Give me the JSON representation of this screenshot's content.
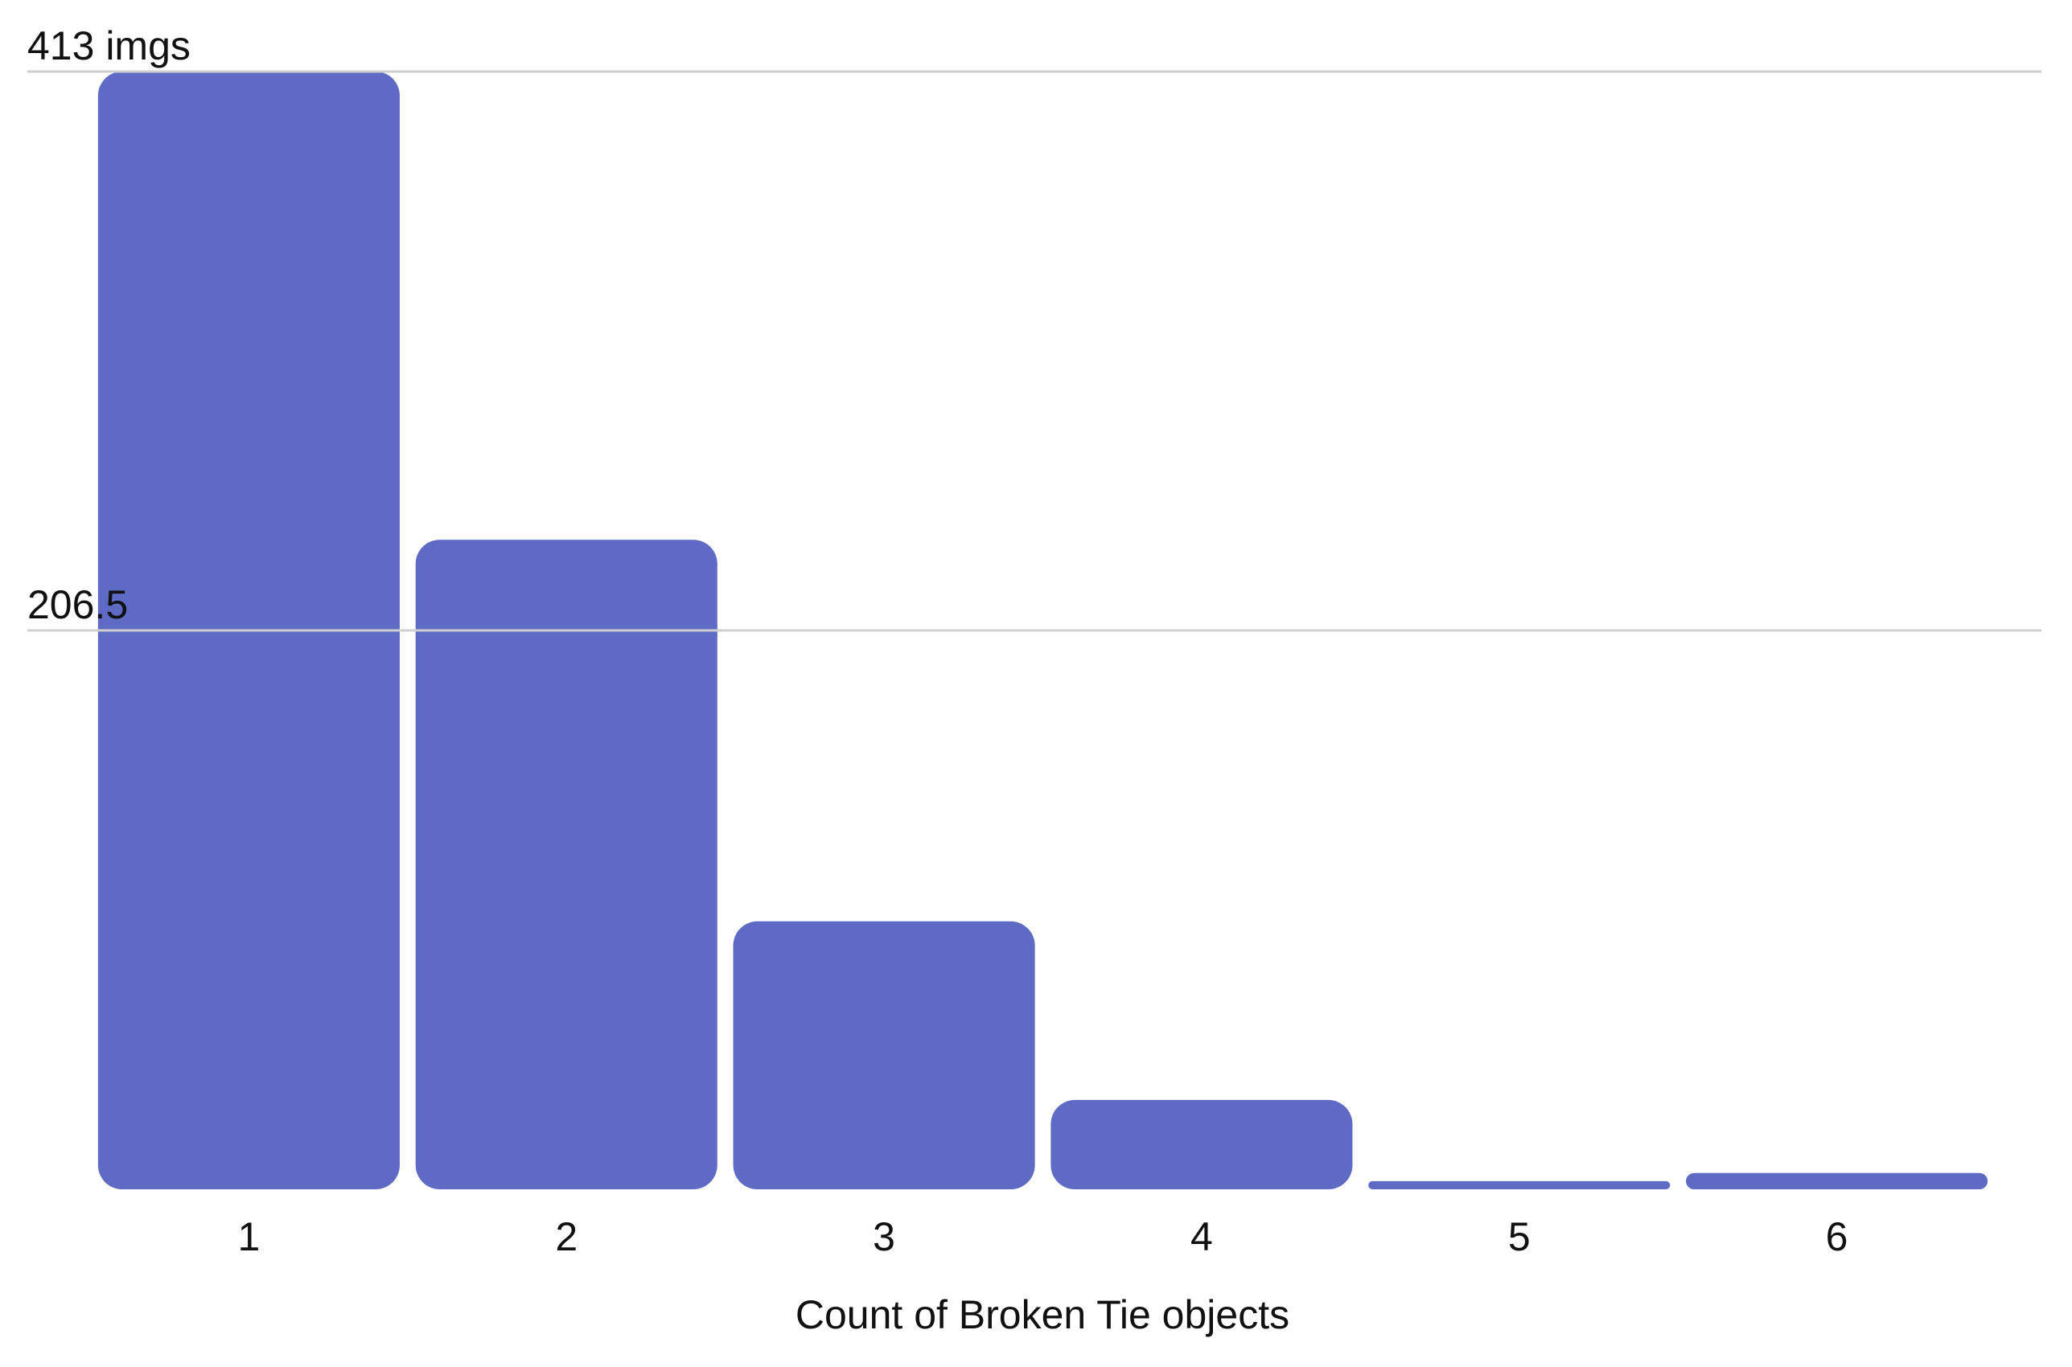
{
  "chart_data": {
    "type": "bar",
    "x_label": "Count of Broken Tie objects",
    "categories": [
      "1",
      "2",
      "3",
      "4",
      "5",
      "6"
    ],
    "values": [
      413,
      240,
      99,
      33,
      3,
      6
    ],
    "color": "#5e6ac4",
    "ylim": [
      0,
      413
    ],
    "yticks": [
      {
        "value": 413,
        "label": "413 imgs"
      },
      206.5
    ],
    "grid": true
  }
}
